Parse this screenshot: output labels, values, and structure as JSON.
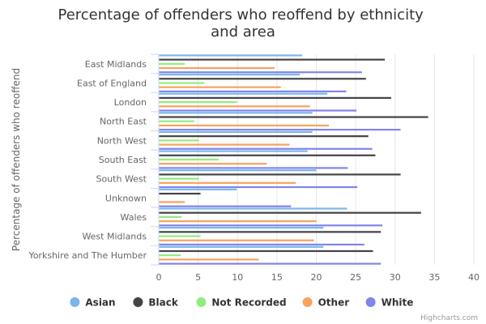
{
  "chart_data": {
    "type": "bar",
    "orientation": "horizontal",
    "title": "Percentage of offenders who reoffend by ethnicity and area",
    "ylabel": "Percentage of offenders who reoffend",
    "xlabel": "",
    "xlim": [
      0,
      40
    ],
    "ticks": [
      0,
      5,
      10,
      15,
      20,
      25,
      30,
      35,
      40
    ],
    "grid": true,
    "legend_position": "bottom",
    "categories": [
      "East Midlands",
      "East of England",
      "London",
      "North East",
      "North West",
      "South East",
      "South West",
      "Unknown",
      "Wales",
      "West Midlands",
      "Yorkshire and The Humber"
    ],
    "series": [
      {
        "name": "Asian",
        "color": "#7cb5ec",
        "values": [
          18.2,
          17.9,
          21.4,
          19.5,
          19.5,
          18.9,
          20.0,
          9.9,
          23.9,
          20.9,
          20.9
        ]
      },
      {
        "name": "Black",
        "color": "#434348",
        "values": [
          28.7,
          26.3,
          29.5,
          34.2,
          26.6,
          27.5,
          30.7,
          5.3,
          33.3,
          28.2,
          27.2
        ]
      },
      {
        "name": "Not Recorded",
        "color": "#90ed7d",
        "values": [
          3.3,
          5.8,
          9.9,
          4.5,
          5.1,
          7.6,
          5.1,
          0.0,
          2.9,
          5.3,
          2.8
        ]
      },
      {
        "name": "Other",
        "color": "#f7a35c",
        "values": [
          14.7,
          15.5,
          19.2,
          21.6,
          16.6,
          13.7,
          17.4,
          3.3,
          20.0,
          19.7,
          12.7
        ]
      },
      {
        "name": "White",
        "color": "#8085e9",
        "values": [
          25.8,
          23.8,
          25.1,
          30.7,
          27.1,
          24.0,
          25.2,
          16.8,
          28.4,
          26.1,
          28.2
        ]
      }
    ]
  },
  "credits": "Highcharts.com"
}
